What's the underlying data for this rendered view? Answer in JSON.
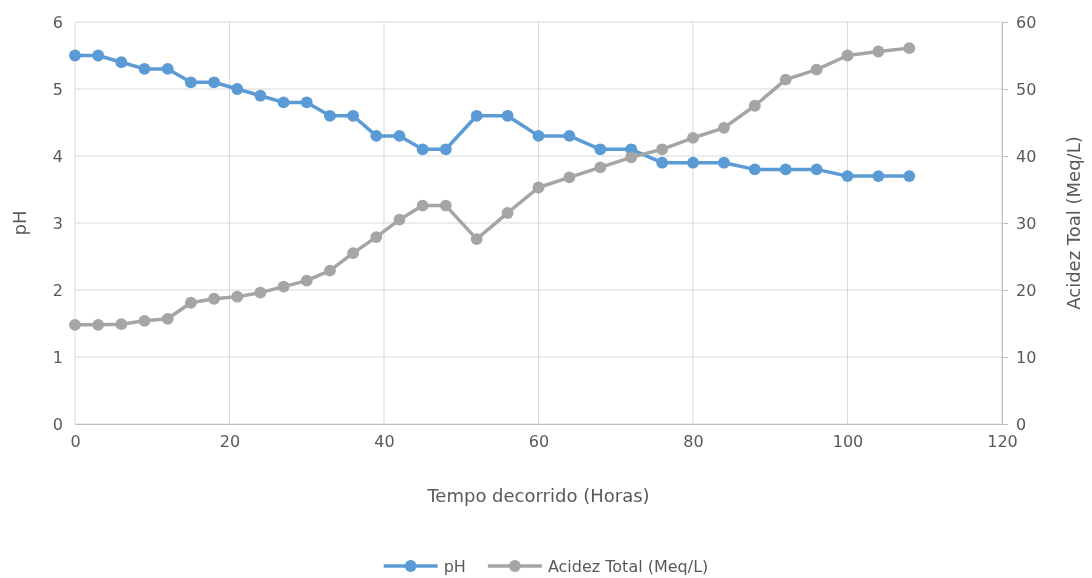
{
  "chart_data": {
    "type": "line",
    "xlabel": "Tempo decorrido (Horas)",
    "ylabel": "pH",
    "y2label": "Acidez Toal (Meq/L)",
    "x": [
      0,
      3,
      6,
      9,
      12,
      15,
      18,
      21,
      24,
      27,
      30,
      33,
      36,
      39,
      42,
      45,
      48,
      52,
      56,
      60,
      64,
      68,
      72,
      76,
      80,
      84,
      88,
      92,
      96,
      100,
      104,
      108
    ],
    "series": [
      {
        "name": "pH",
        "color": "#5b9bd5",
        "values": [
          5.5,
          5.5,
          5.4,
          5.3,
          5.3,
          5.1,
          5.1,
          5.0,
          4.9,
          4.8,
          4.8,
          4.6,
          4.6,
          4.3,
          4.3,
          4.1,
          4.1,
          4.6,
          4.6,
          4.3,
          4.3,
          4.1,
          4.1,
          3.9,
          3.9,
          3.9,
          3.8,
          3.8,
          3.8,
          3.7,
          3.7,
          3.7
        ]
      },
      {
        "name": "Acidez Total (Meq/L)",
        "color": "#a5a5a5",
        "axis": "y2",
        "values": [
          14.8,
          14.8,
          14.9,
          15.4,
          15.7,
          18.1,
          18.7,
          19.0,
          19.6,
          20.5,
          21.4,
          22.9,
          25.5,
          27.9,
          30.5,
          32.6,
          32.6,
          27.6,
          31.5,
          35.3,
          36.8,
          38.3,
          39.8,
          41.0,
          42.7,
          44.2,
          47.5,
          51.4,
          52.9,
          55.0,
          55.6,
          56.1
        ]
      }
    ],
    "xlim": [
      0,
      120
    ],
    "xticks": [
      0,
      20,
      40,
      60,
      80,
      100,
      120
    ],
    "ylim": [
      0,
      6
    ],
    "yticks": [
      0,
      1,
      2,
      3,
      4,
      5,
      6
    ],
    "y2lim": [
      0,
      60
    ],
    "y2ticks": [
      0,
      10,
      20,
      30,
      40,
      50,
      60
    ],
    "grid": true,
    "legend": "bottom",
    "marker": "circle",
    "line_style": "solid"
  }
}
